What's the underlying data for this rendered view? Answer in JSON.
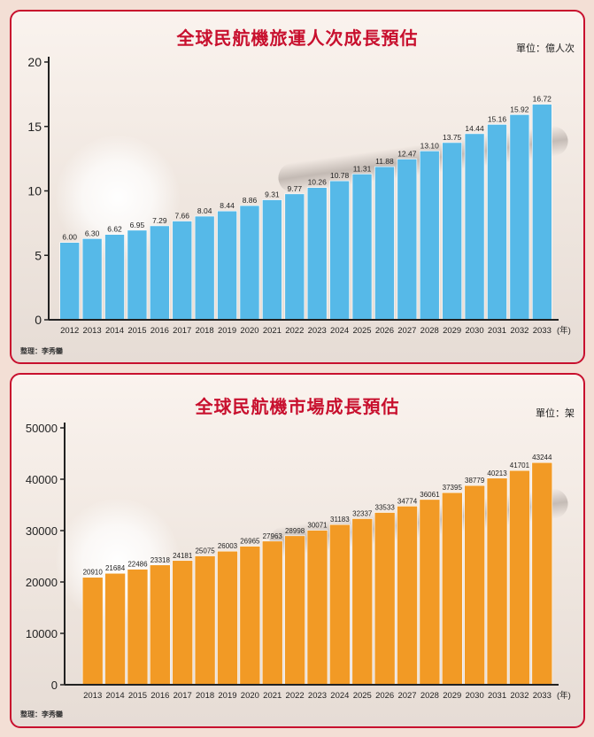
{
  "charts": [
    {
      "title": "全球民航機旅運人次成長預估",
      "unit_label": "單位：億人次",
      "credit": "整理：李秀鑾",
      "year_suffix": "(年)",
      "bar_color": "#56b9e8"
    },
    {
      "title": "全球民航機市場成長預估",
      "unit_label": "單位：架",
      "credit": "整理：李秀鑾",
      "year_suffix": "(年)",
      "bar_color": "#f29a25"
    }
  ],
  "chart_data": [
    {
      "type": "bar",
      "title": "全球民航機旅運人次成長預估",
      "unit": "單位：億人次",
      "categories": [
        "2012",
        "2013",
        "2014",
        "2015",
        "2016",
        "2017",
        "2018",
        "2019",
        "2020",
        "2021",
        "2022",
        "2023",
        "2024",
        "2025",
        "2026",
        "2027",
        "2028",
        "2029",
        "2030",
        "2031",
        "2032",
        "2033"
      ],
      "values": [
        6.0,
        6.3,
        6.62,
        6.95,
        7.29,
        7.66,
        8.04,
        8.44,
        8.86,
        9.31,
        9.77,
        10.26,
        10.78,
        11.31,
        11.88,
        12.47,
        13.1,
        13.75,
        14.44,
        15.16,
        15.92,
        16.72
      ],
      "value_labels": [
        "6.00",
        "6.30",
        "6.62",
        "6.95",
        "7.29",
        "7.66",
        "8.04",
        "8.44",
        "8.86",
        "9.31",
        "9.77",
        "10.26",
        "10.78",
        "11.31",
        "11.88",
        "12.47",
        "13.10",
        "13.75",
        "14.44",
        "15.16",
        "15.92",
        "16.72"
      ],
      "yticks": [
        0,
        5,
        10,
        15,
        20
      ],
      "ylim": [
        0,
        20
      ],
      "grid": false
    },
    {
      "type": "bar",
      "title": "全球民航機市場成長預估",
      "unit": "單位：架",
      "categories": [
        "2013",
        "2014",
        "2015",
        "2016",
        "2017",
        "2018",
        "2019",
        "2020",
        "2021",
        "2022",
        "2023",
        "2024",
        "2025",
        "2026",
        "2027",
        "2028",
        "2029",
        "2030",
        "2031",
        "2032",
        "2033"
      ],
      "values": [
        20910,
        21684,
        22486,
        23318,
        24181,
        25075,
        26003,
        26965,
        27963,
        28998,
        30071,
        31183,
        32337,
        33533,
        34774,
        36061,
        37395,
        38779,
        40213,
        41701,
        43244
      ],
      "value_labels": [
        "20910",
        "21684",
        "22486",
        "23318",
        "24181",
        "25075",
        "26003",
        "26965",
        "27963",
        "28998",
        "30071",
        "31183",
        "32337",
        "33533",
        "34774",
        "36061",
        "37395",
        "38779",
        "40213",
        "41701",
        "43244"
      ],
      "yticks": [
        0,
        10000,
        20000,
        30000,
        40000,
        50000
      ],
      "ylim": [
        0,
        50000
      ],
      "grid": false
    }
  ]
}
